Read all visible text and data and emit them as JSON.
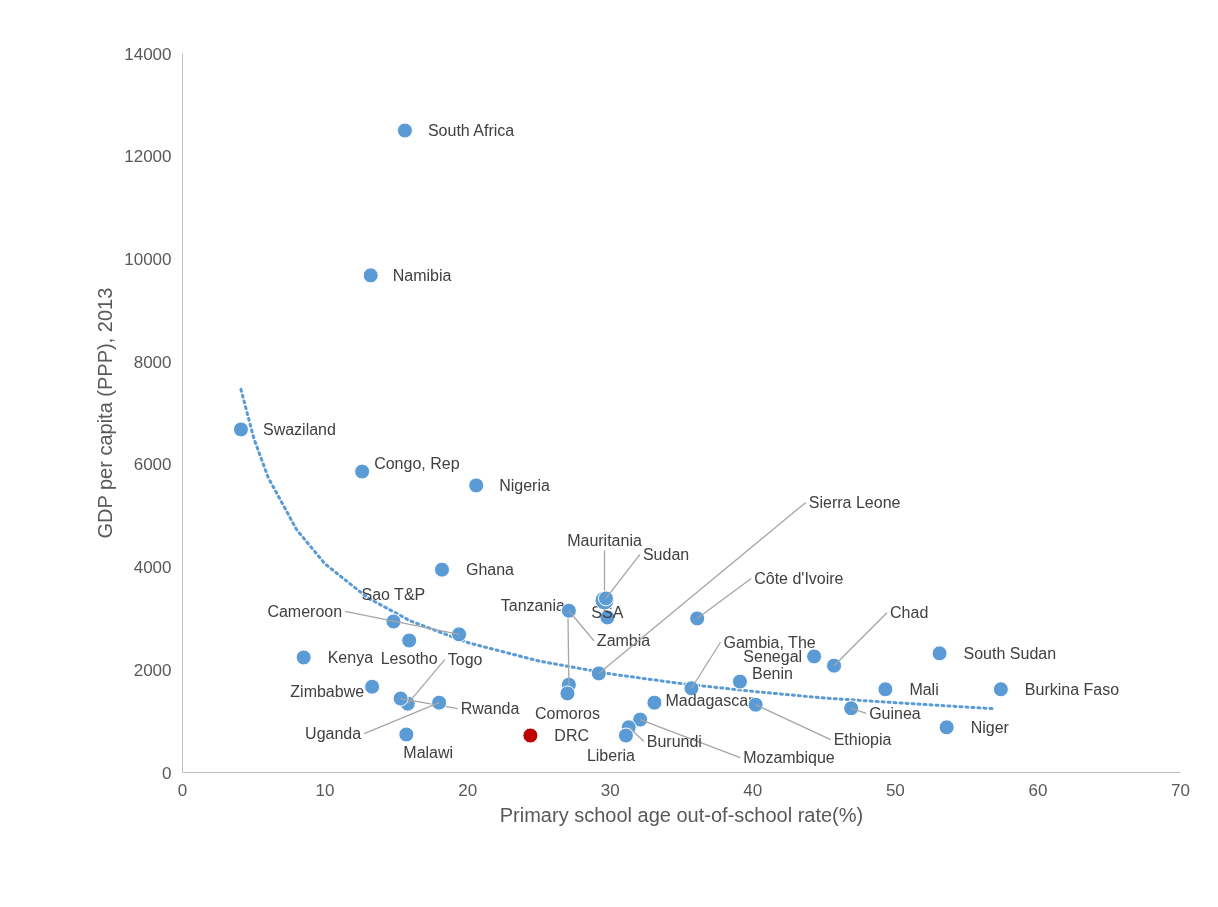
{
  "chart_data": {
    "type": "scatter",
    "xlabel": "Primary school age out-of-school rate(%)",
    "ylabel": "GDP per capita (PPP), 2013",
    "xlim": [
      0,
      70
    ],
    "xticks": [
      0,
      10,
      20,
      30,
      40,
      50,
      60,
      70
    ],
    "ylim": [
      0,
      14000
    ],
    "yticks": [
      0,
      2000,
      4000,
      6000,
      8000,
      10000,
      12000,
      14000
    ],
    "grid": false,
    "marker": "circle",
    "series": [
      {
        "name": "South Africa",
        "color": "#5b9bd5",
        "x": [
          15.6
        ],
        "values": [
          12500
        ]
      },
      {
        "name": "Namibia",
        "color": "#5b9bd5",
        "x": [
          13.2
        ],
        "values": [
          9680
        ]
      },
      {
        "name": "Swaziland",
        "color": "#5b9bd5",
        "x": [
          4.1
        ],
        "values": [
          6680
        ]
      },
      {
        "name": "Congo, Rep",
        "color": "#5b9bd5",
        "x": [
          12.6
        ],
        "values": [
          5860
        ]
      },
      {
        "name": "Nigeria",
        "color": "#5b9bd5",
        "x": [
          20.6
        ],
        "values": [
          5590
        ]
      },
      {
        "name": "Ghana",
        "color": "#5b9bd5",
        "x": [
          18.2
        ],
        "values": [
          3950
        ]
      },
      {
        "name": "Sao T&P",
        "color": "#5b9bd5",
        "x": [
          14.8
        ],
        "values": [
          2940
        ]
      },
      {
        "name": "Cameroon",
        "color": "#5b9bd5",
        "x": [
          19.4
        ],
        "values": [
          2690
        ]
      },
      {
        "name": "Lesotho",
        "color": "#5b9bd5",
        "x": [
          15.9
        ],
        "values": [
          2570
        ]
      },
      {
        "name": "Togo",
        "color": "#5b9bd5",
        "x": [
          15.8
        ],
        "values": [
          1340
        ]
      },
      {
        "name": "Rwanda",
        "color": "#5b9bd5",
        "x": [
          15.3
        ],
        "values": [
          1440
        ]
      },
      {
        "name": "Uganda",
        "color": "#5b9bd5",
        "x": [
          18.0
        ],
        "values": [
          1360
        ]
      },
      {
        "name": "Kenya",
        "color": "#5b9bd5",
        "x": [
          8.5
        ],
        "values": [
          2240
        ]
      },
      {
        "name": "Zimbabwe",
        "color": "#5b9bd5",
        "x": [
          13.3
        ],
        "values": [
          1670
        ]
      },
      {
        "name": "Malawi",
        "color": "#5b9bd5",
        "x": [
          15.7
        ],
        "values": [
          740
        ]
      },
      {
        "name": "DRC",
        "color": "#c00000",
        "x": [
          24.4
        ],
        "values": [
          720
        ]
      },
      {
        "name": "Tanzania",
        "color": "#5b9bd5",
        "x": [
          27.1
        ],
        "values": [
          1710
        ]
      },
      {
        "name": "Comoros",
        "color": "#5b9bd5",
        "x": [
          27.0
        ],
        "values": [
          1540
        ]
      },
      {
        "name": "Zambia",
        "color": "#5b9bd5",
        "x": [
          27.1
        ],
        "values": [
          3150
        ]
      },
      {
        "name": "SSA",
        "color": "#5b9bd5",
        "x": [
          29.8
        ],
        "values": [
          3020
        ]
      },
      {
        "name": "Mauritania",
        "color": "#5b9bd5",
        "x": [
          29.6
        ],
        "values": [
          3350
        ]
      },
      {
        "name": "Sudan",
        "color": "#5b9bd5",
        "x": [
          29.7
        ],
        "values": [
          3390
        ]
      },
      {
        "name": "Sierra Leone",
        "color": "#5b9bd5",
        "x": [
          29.2
        ],
        "values": [
          1930
        ]
      },
      {
        "name": "Côte d'Ivoire",
        "color": "#5b9bd5",
        "x": [
          36.1
        ],
        "values": [
          3000
        ]
      },
      {
        "name": "Gambia, The",
        "color": "#5b9bd5",
        "x": [
          35.7
        ],
        "values": [
          1640
        ]
      },
      {
        "name": "Benin",
        "color": "#5b9bd5",
        "x": [
          39.1
        ],
        "values": [
          1770
        ]
      },
      {
        "name": "Madagascar",
        "color": "#5b9bd5",
        "x": [
          33.1
        ],
        "values": [
          1360
        ]
      },
      {
        "name": "Ethiopia",
        "color": "#5b9bd5",
        "x": [
          40.2
        ],
        "values": [
          1320
        ]
      },
      {
        "name": "Mozambique",
        "color": "#5b9bd5",
        "x": [
          32.1
        ],
        "values": [
          1030
        ]
      },
      {
        "name": "Burundi",
        "color": "#5b9bd5",
        "x": [
          31.3
        ],
        "values": [
          880
        ]
      },
      {
        "name": "Liberia",
        "color": "#5b9bd5",
        "x": [
          31.1
        ],
        "values": [
          720
        ]
      },
      {
        "name": "Senegal",
        "color": "#5b9bd5",
        "x": [
          44.3
        ],
        "values": [
          2260
        ]
      },
      {
        "name": "Chad",
        "color": "#5b9bd5",
        "x": [
          45.7
        ],
        "values": [
          2080
        ]
      },
      {
        "name": "South Sudan",
        "color": "#5b9bd5",
        "x": [
          53.1
        ],
        "values": [
          2320
        ]
      },
      {
        "name": "Mali",
        "color": "#5b9bd5",
        "x": [
          49.3
        ],
        "values": [
          1620
        ]
      },
      {
        "name": "Burkina Faso",
        "color": "#5b9bd5",
        "x": [
          57.4
        ],
        "values": [
          1620
        ]
      },
      {
        "name": "Guinea",
        "color": "#5b9bd5",
        "x": [
          46.9
        ],
        "values": [
          1250
        ]
      },
      {
        "name": "Niger",
        "color": "#5b9bd5",
        "x": [
          53.6
        ],
        "values": [
          880
        ]
      },
      {
        "type": "line",
        "line_style": "dotted",
        "marker": "none",
        "color": "#5b9bd5",
        "x": [
          4.1,
          5,
          6,
          8,
          10,
          13,
          16,
          20,
          25,
          30,
          35,
          40,
          45,
          50,
          57
        ],
        "values": [
          7460,
          6510,
          5750,
          4730,
          4060,
          3400,
          2950,
          2530,
          2170,
          1920,
          1730,
          1580,
          1450,
          1360,
          1240
        ]
      }
    ]
  }
}
